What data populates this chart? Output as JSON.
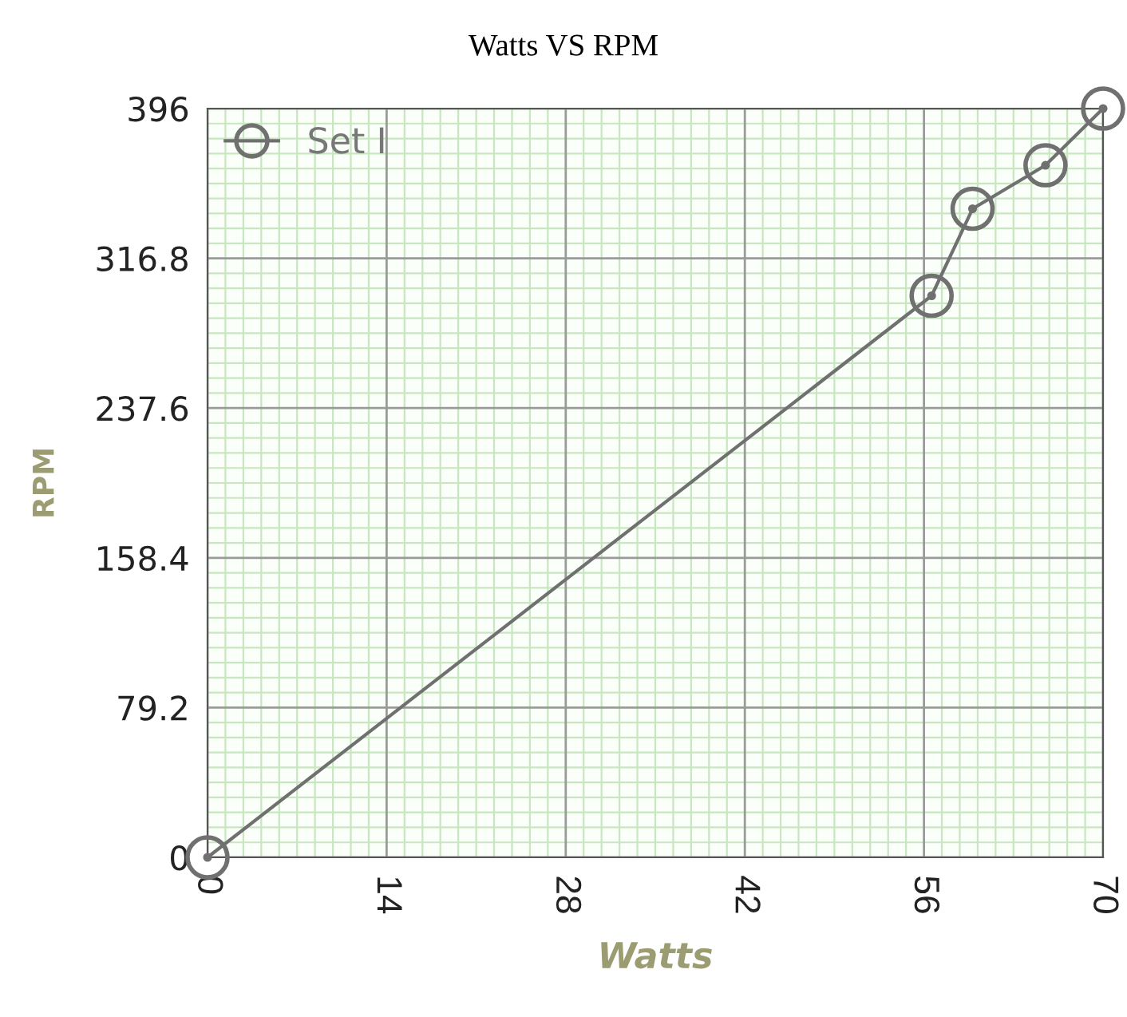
{
  "chart_data": {
    "type": "line",
    "title": "Watts VS RPM",
    "xlabel": "Watts",
    "ylabel": "RPM",
    "x": [
      0,
      56.6,
      59.8,
      65.5,
      70
    ],
    "series": [
      {
        "name": "Set I",
        "color": "#707070",
        "values": [
          0,
          297,
          343,
          366,
          396
        ]
      }
    ],
    "xlim": [
      0,
      70
    ],
    "xticks": [
      0,
      14,
      28,
      42,
      56,
      70
    ],
    "ylim": [
      0,
      396
    ],
    "yticks": [
      0,
      79.2,
      158.4,
      237.6,
      316.8,
      396
    ],
    "grid": true,
    "legend": "top left",
    "marker": "circle",
    "line_style": "solid"
  }
}
